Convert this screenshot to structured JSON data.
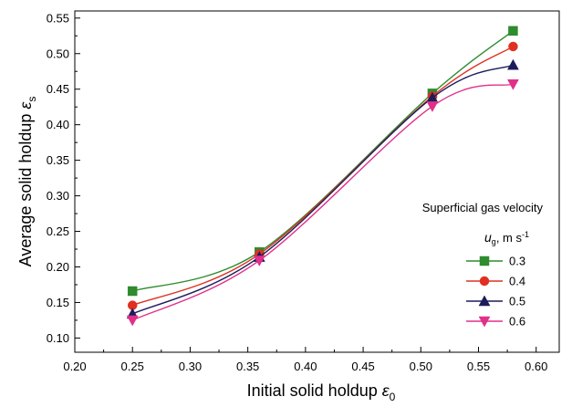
{
  "chart_data": {
    "type": "line",
    "xlabel": {
      "main": "Initial solid holdup ",
      "symbol": "ε",
      "sub": "0"
    },
    "ylabel": {
      "main": "Average solid holdup ",
      "symbol": "ε",
      "sub": "s"
    },
    "xlim": [
      0.2,
      0.62
    ],
    "ylim": [
      0.08,
      0.56
    ],
    "x_ticks": [
      "0.20",
      "0.25",
      "0.30",
      "0.35",
      "0.40",
      "0.45",
      "0.50",
      "0.55",
      "0.60"
    ],
    "y_ticks": [
      "0.10",
      "0.15",
      "0.20",
      "0.25",
      "0.30",
      "0.35",
      "0.40",
      "0.45",
      "0.50",
      "0.55"
    ],
    "legend": {
      "title": "Superficial gas velocity",
      "unit": {
        "symbol": "u",
        "sub": "g",
        "text": ", m s",
        "sup": "-1"
      },
      "position": "right"
    },
    "x": [
      0.25,
      0.36,
      0.51,
      0.58
    ],
    "series": [
      {
        "name": "0.3",
        "color": "#2e8b2e",
        "marker": "square",
        "values": [
          0.166,
          0.221,
          0.444,
          0.532
        ]
      },
      {
        "name": "0.4",
        "color": "#e03020",
        "marker": "circle",
        "values": [
          0.146,
          0.218,
          0.44,
          0.51
        ]
      },
      {
        "name": "0.5",
        "color": "#1c1c5c",
        "marker": "triangle-up",
        "values": [
          0.134,
          0.214,
          0.438,
          0.484
        ]
      },
      {
        "name": "0.6",
        "color": "#e0308a",
        "marker": "triangle-down",
        "values": [
          0.125,
          0.209,
          0.426,
          0.457
        ]
      }
    ]
  }
}
